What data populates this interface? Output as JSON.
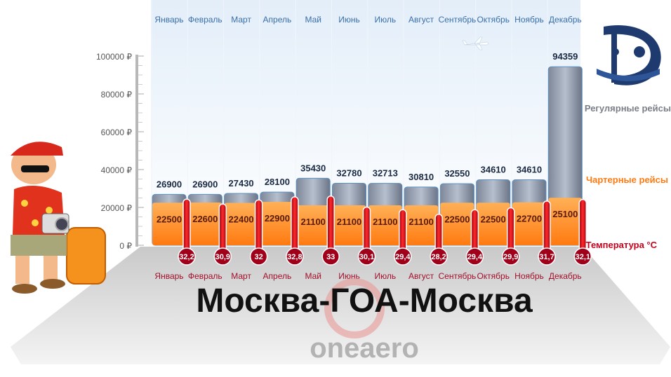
{
  "title": "Москва-ГОА-Москва",
  "watermark": "oneaero",
  "legend": {
    "regular": "Регулярные рейсы",
    "charter": "Чартерные рейсы",
    "temperature": "Температура °C"
  },
  "colors": {
    "regular": "#8a97ab",
    "charter": "#ff8a1e",
    "temperature": "#c8001a",
    "month_top": "#3a6fa8",
    "month_bottom": "#a0102a"
  },
  "chart_data": {
    "type": "bar",
    "categories": [
      "Январь",
      "Февраль",
      "Март",
      "Апрель",
      "Май",
      "Июнь",
      "Июль",
      "Август",
      "Сентябрь",
      "Октябрь",
      "Ноябрь",
      "Декабрь"
    ],
    "series": [
      {
        "name": "Регулярные рейсы",
        "values": [
          26900,
          26900,
          27430,
          28100,
          35430,
          32780,
          32713,
          30810,
          32550,
          34610,
          34610,
          94359
        ]
      },
      {
        "name": "Чартерные рейсы",
        "values": [
          22500,
          22600,
          22400,
          22900,
          21100,
          21100,
          21100,
          21100,
          22500,
          22500,
          22700,
          25100
        ]
      },
      {
        "name": "Температура °C",
        "values": [
          "32,2",
          "30,9",
          "32",
          "32,8",
          "33",
          "30,1",
          "29,4",
          "28,2",
          "29,4",
          "29,9",
          "31,7",
          "32,1"
        ]
      }
    ],
    "yticks": [
      "0 ₽",
      "20000 ₽",
      "40000 ₽",
      "60000 ₽",
      "80000 ₽",
      "100000 ₽"
    ],
    "ylim": [
      0,
      100000
    ]
  }
}
